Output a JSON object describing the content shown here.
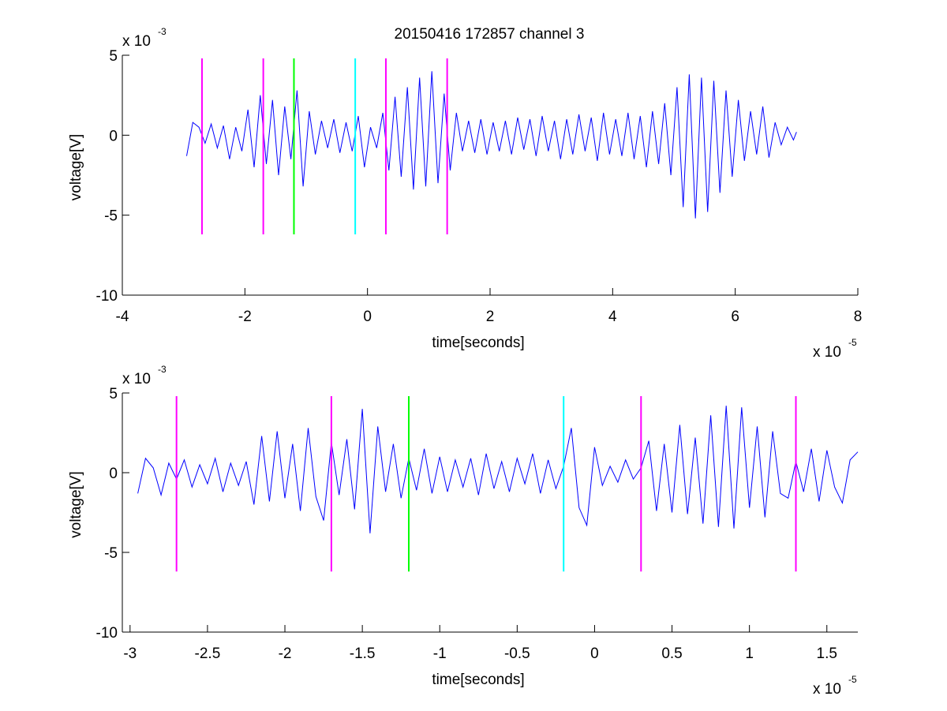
{
  "figure": {
    "title": "20150416 172857 channel 3"
  },
  "chart_data": [
    {
      "type": "line",
      "title": "20150416 172857 channel 3",
      "xlabel": "time[seconds]",
      "ylabel": "voltage[V]",
      "x_multiplier": "x 10",
      "x_exponent": "-5",
      "y_multiplier": "x 10",
      "y_exponent": "-3",
      "xlim": [
        -4,
        8
      ],
      "ylim": [
        -10,
        5
      ],
      "xticks": [
        -4,
        -2,
        0,
        2,
        4,
        6,
        8
      ],
      "xtick_labels": [
        "-4",
        "-2",
        "0",
        "2",
        "4",
        "6",
        "8"
      ],
      "yticks": [
        -10,
        -5,
        0,
        5
      ],
      "ytick_labels": [
        "-10",
        "-5",
        "0",
        "5"
      ],
      "series": [
        {
          "color": "#0000ff",
          "x": [
            -2.95,
            -2.85,
            -2.75,
            -2.65,
            -2.55,
            -2.45,
            -2.35,
            -2.25,
            -2.15,
            -2.05,
            -1.95,
            -1.85,
            -1.75,
            -1.65,
            -1.55,
            -1.45,
            -1.35,
            -1.25,
            -1.15,
            -1.05,
            -0.95,
            -0.85,
            -0.75,
            -0.65,
            -0.55,
            -0.45,
            -0.35,
            -0.25,
            -0.15,
            -0.05,
            0.05,
            0.15,
            0.25,
            0.35,
            0.45,
            0.55,
            0.65,
            0.75,
            0.85,
            0.95,
            1.05,
            1.15,
            1.25,
            1.35,
            1.45,
            1.55,
            1.65,
            1.75,
            1.85,
            1.95,
            2.05,
            2.15,
            2.25,
            2.35,
            2.45,
            2.55,
            2.65,
            2.75,
            2.85,
            2.95,
            3.05,
            3.15,
            3.25,
            3.35,
            3.45,
            3.55,
            3.65,
            3.75,
            3.85,
            3.95,
            4.05,
            4.15,
            4.25,
            4.35,
            4.45,
            4.55,
            4.65,
            4.75,
            4.85,
            4.95,
            5.05,
            5.15,
            5.25,
            5.35,
            5.45,
            5.55,
            5.65,
            5.75,
            5.85,
            5.95,
            6.05,
            6.15,
            6.25,
            6.35,
            6.45,
            6.55,
            6.65,
            6.75,
            6.85,
            6.95,
            7.0
          ],
          "y": [
            -1.3,
            0.8,
            0.5,
            -0.5,
            0.7,
            -0.8,
            0.6,
            -1.5,
            0.5,
            -1.0,
            1.6,
            -2.0,
            2.5,
            -1.8,
            2.2,
            -2.5,
            1.8,
            -1.5,
            2.8,
            -3.2,
            1.5,
            -1.2,
            0.9,
            -0.8,
            1.0,
            -1.1,
            0.8,
            -1.0,
            1.2,
            -2.0,
            0.5,
            -0.8,
            1.4,
            -2.2,
            2.4,
            -2.6,
            3.0,
            -3.4,
            3.6,
            -3.2,
            4.0,
            -3.0,
            2.6,
            -2.2,
            1.4,
            -1.0,
            0.9,
            -1.1,
            1.0,
            -1.2,
            0.8,
            -1.0,
            0.9,
            -1.2,
            1.1,
            -0.9,
            1.0,
            -1.3,
            1.2,
            -1.0,
            0.9,
            -1.5,
            1.0,
            -1.2,
            1.3,
            -1.0,
            1.1,
            -1.6,
            1.4,
            -1.2,
            1.0,
            -1.3,
            1.4,
            -1.5,
            1.2,
            -2.0,
            1.5,
            -1.8,
            2.0,
            -2.5,
            3.0,
            -4.5,
            3.8,
            -5.2,
            3.6,
            -4.8,
            3.4,
            -3.6,
            2.8,
            -2.6,
            2.2,
            -1.6,
            1.5,
            -1.2,
            1.8,
            -1.4,
            0.8,
            -0.6,
            0.5,
            -0.3,
            0.2
          ]
        }
      ],
      "markers": [
        {
          "x": -2.7,
          "color": "#ff00ff"
        },
        {
          "x": -1.7,
          "color": "#ff00ff"
        },
        {
          "x": -1.2,
          "color": "#00ff00"
        },
        {
          "x": -0.2,
          "color": "#00ffff"
        },
        {
          "x": 0.3,
          "color": "#ff00ff"
        },
        {
          "x": 1.3,
          "color": "#ff00ff"
        }
      ],
      "marker_y_range": [
        -6.2,
        4.8
      ],
      "grid": false
    },
    {
      "type": "line",
      "title": "",
      "xlabel": "time[seconds]",
      "ylabel": "voltage[V]",
      "x_multiplier": "x 10",
      "x_exponent": "-5",
      "y_multiplier": "x 10",
      "y_exponent": "-3",
      "xlim": [
        -3.05,
        1.7
      ],
      "ylim": [
        -10,
        5
      ],
      "xticks": [
        -3,
        -2.5,
        -2,
        -1.5,
        -1,
        -0.5,
        0,
        0.5,
        1,
        1.5
      ],
      "xtick_labels": [
        "-3",
        "-2.5",
        "-2",
        "-1.5",
        "-1",
        "-0.5",
        "0",
        "0.5",
        "1",
        "1.5"
      ],
      "yticks": [
        -10,
        -5,
        0,
        5
      ],
      "ytick_labels": [
        "-10",
        "-5",
        "0",
        "5"
      ],
      "series": [
        {
          "color": "#0000ff",
          "x": [
            -2.95,
            -2.9,
            -2.85,
            -2.8,
            -2.75,
            -2.7,
            -2.65,
            -2.6,
            -2.55,
            -2.5,
            -2.45,
            -2.4,
            -2.35,
            -2.3,
            -2.25,
            -2.2,
            -2.15,
            -2.1,
            -2.05,
            -2.0,
            -1.95,
            -1.9,
            -1.85,
            -1.8,
            -1.75,
            -1.7,
            -1.65,
            -1.6,
            -1.55,
            -1.5,
            -1.45,
            -1.4,
            -1.35,
            -1.3,
            -1.25,
            -1.2,
            -1.15,
            -1.1,
            -1.05,
            -1.0,
            -0.95,
            -0.9,
            -0.85,
            -0.8,
            -0.75,
            -0.7,
            -0.65,
            -0.6,
            -0.55,
            -0.5,
            -0.45,
            -0.4,
            -0.35,
            -0.3,
            -0.25,
            -0.2,
            -0.15,
            -0.1,
            -0.05,
            0.0,
            0.05,
            0.1,
            0.15,
            0.2,
            0.25,
            0.3,
            0.35,
            0.4,
            0.45,
            0.5,
            0.55,
            0.6,
            0.65,
            0.7,
            0.75,
            0.8,
            0.85,
            0.9,
            0.95,
            1.0,
            1.05,
            1.1,
            1.15,
            1.2,
            1.25,
            1.3,
            1.35,
            1.4,
            1.45,
            1.5,
            1.55,
            1.6,
            1.65,
            1.7
          ],
          "y": [
            -1.3,
            0.9,
            0.3,
            -1.4,
            0.6,
            -0.4,
            0.8,
            -0.9,
            0.5,
            -0.7,
            0.9,
            -1.2,
            0.6,
            -0.8,
            0.7,
            -2.0,
            2.3,
            -1.8,
            2.6,
            -1.6,
            1.8,
            -2.4,
            2.8,
            -1.5,
            -3.0,
            1.9,
            -1.4,
            2.1,
            -2.3,
            4.0,
            -3.8,
            2.9,
            -1.2,
            1.8,
            -1.6,
            0.9,
            -1.1,
            1.5,
            -1.3,
            1.0,
            -1.2,
            0.8,
            -0.9,
            0.9,
            -1.4,
            1.2,
            -1.0,
            0.7,
            -1.2,
            0.9,
            -0.7,
            1.2,
            -1.3,
            0.8,
            -1.0,
            0.4,
            2.8,
            -2.2,
            -3.3,
            1.6,
            -0.8,
            0.4,
            -0.6,
            0.8,
            -0.4,
            0.3,
            2.0,
            -2.4,
            1.8,
            -2.5,
            3.0,
            -2.6,
            2.2,
            -3.2,
            3.6,
            -3.4,
            4.2,
            -3.5,
            4.1,
            -2.2,
            2.9,
            -2.8,
            2.6,
            -1.3,
            -1.6,
            0.7,
            -1.2,
            1.5,
            -1.8,
            1.4,
            -0.9,
            -1.9,
            0.8,
            1.3
          ]
        }
      ],
      "markers": [
        {
          "x": -2.7,
          "color": "#ff00ff"
        },
        {
          "x": -1.7,
          "color": "#ff00ff"
        },
        {
          "x": -1.2,
          "color": "#00ff00"
        },
        {
          "x": -0.2,
          "color": "#00ffff"
        },
        {
          "x": 0.3,
          "color": "#ff00ff"
        },
        {
          "x": 1.3,
          "color": "#ff00ff"
        }
      ],
      "marker_y_range": [
        -6.2,
        4.8
      ],
      "grid": false
    }
  ]
}
